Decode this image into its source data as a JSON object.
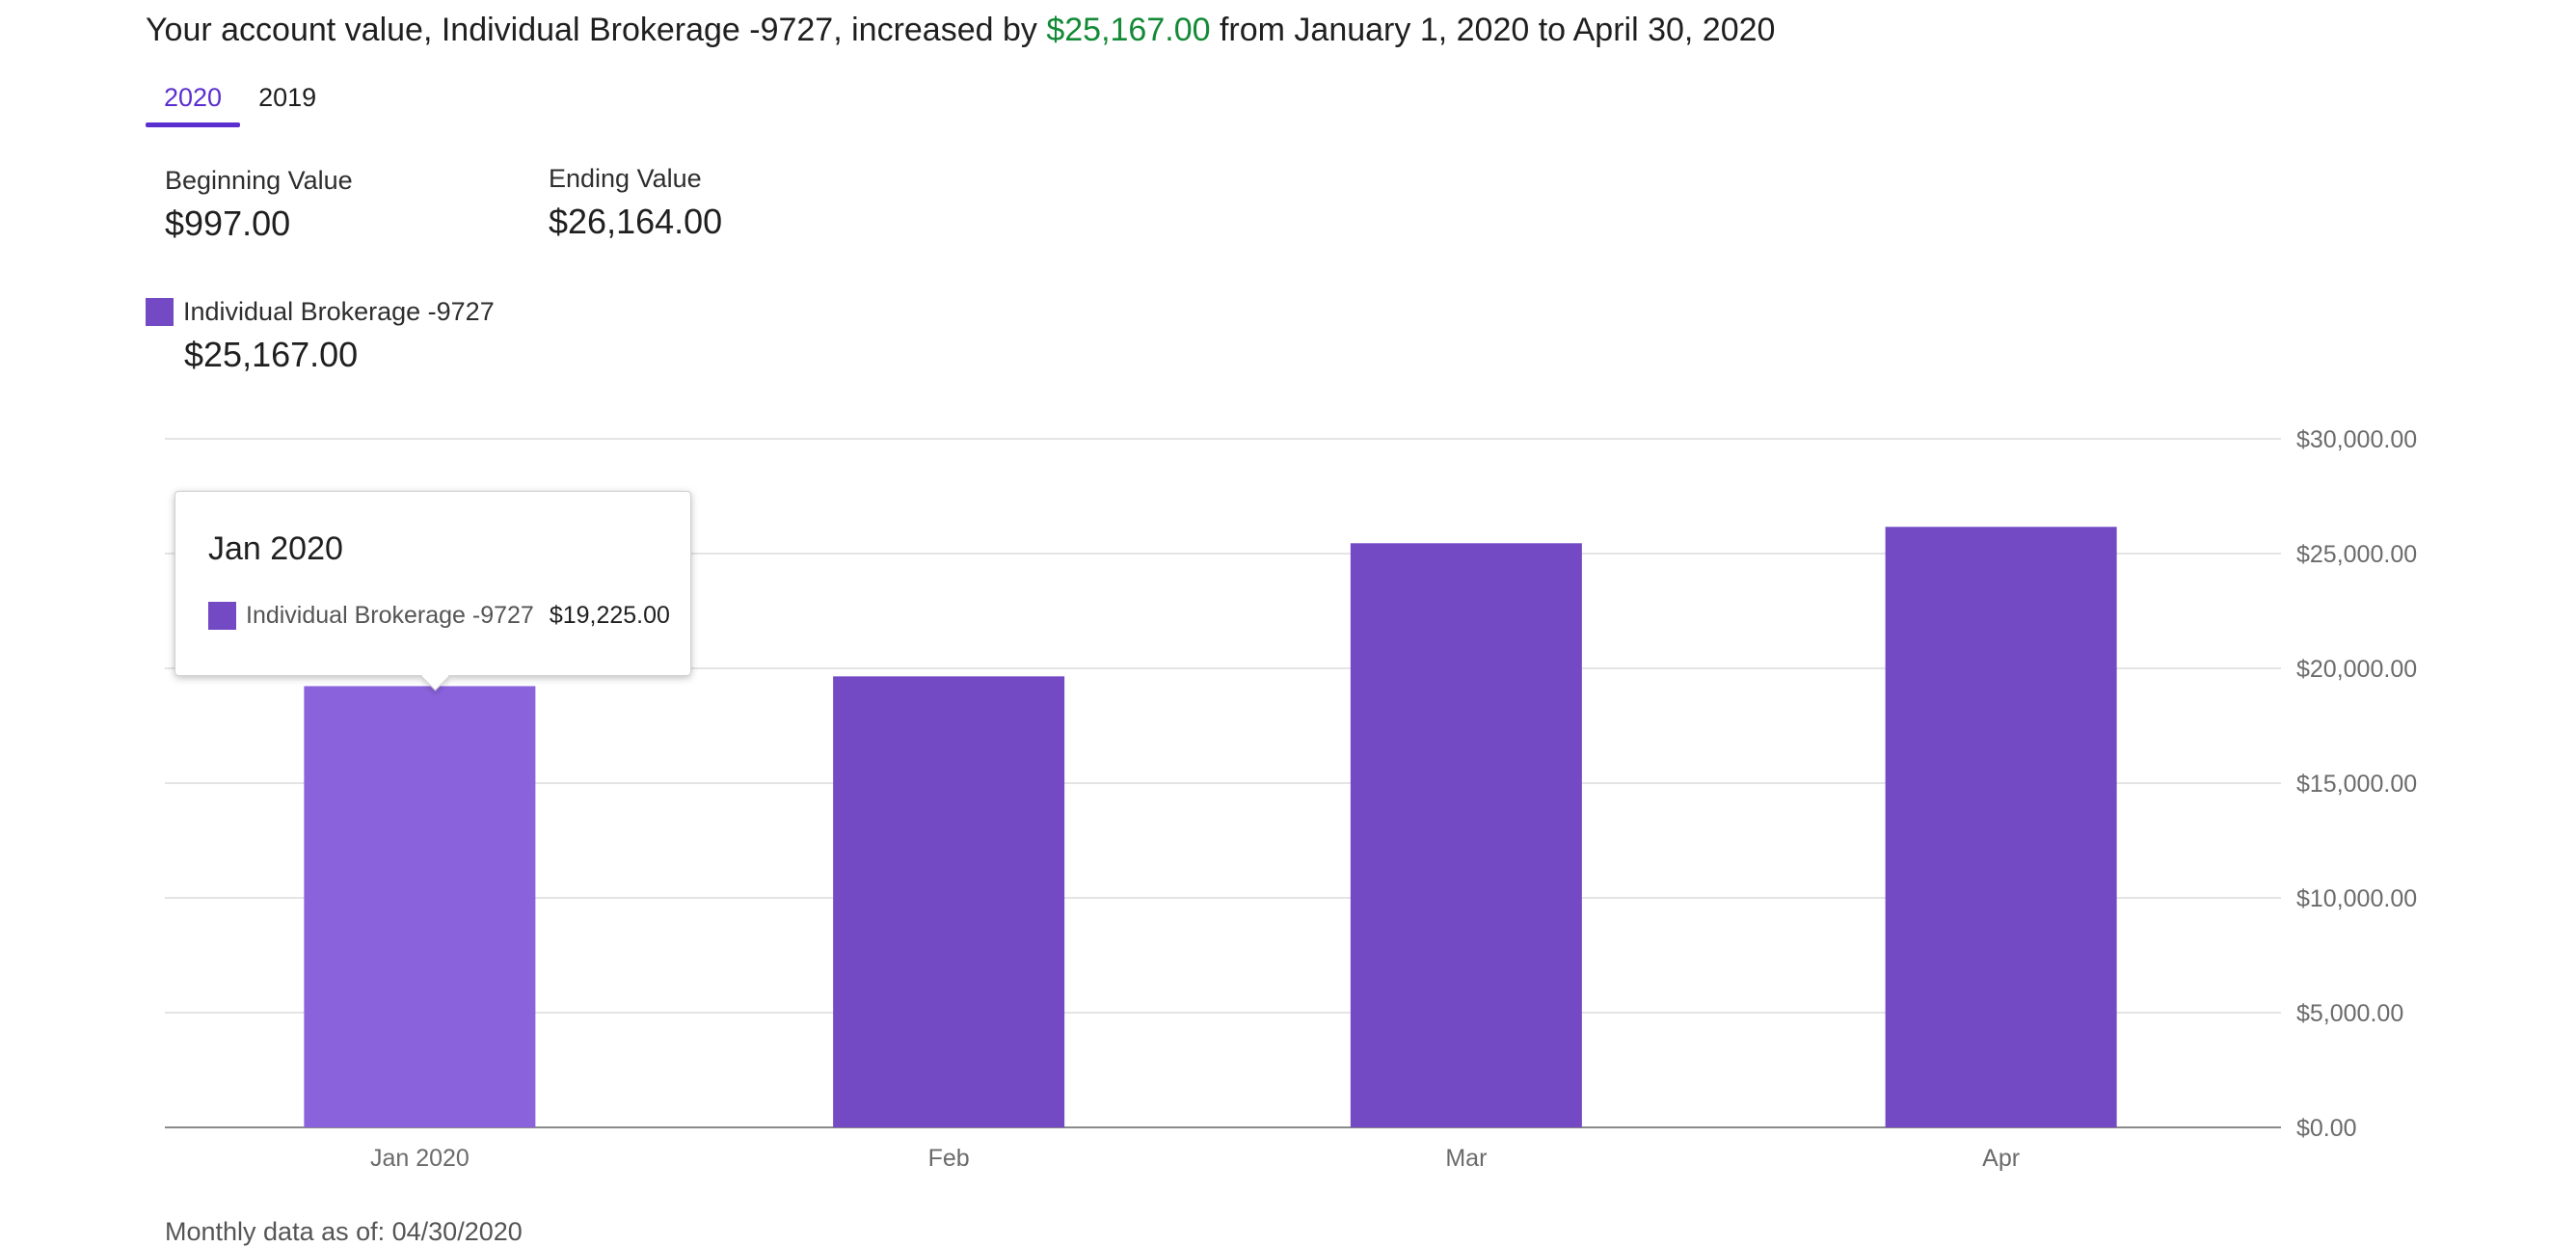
{
  "headline": {
    "prefix": "Your account value, Individual Brokerage -9727, increased by",
    "amount": "$25,167.00",
    "suffix": "from January 1, 2020 to April 30, 2020"
  },
  "tabs": [
    {
      "label": "2020",
      "active": true
    },
    {
      "label": "2019",
      "active": false
    }
  ],
  "summary": {
    "beginning_label": "Beginning Value",
    "beginning_value": "$997.00",
    "ending_label": "Ending Value",
    "ending_value": "$26,164.00"
  },
  "legend": {
    "series_name": "Individual Brokerage -9727",
    "value": "$25,167.00"
  },
  "tooltip": {
    "title": "Jan 2020",
    "series_name": "Individual Brokerage -9727",
    "value": "$19,225.00"
  },
  "footnote": "Monthly data as of: 04/30/2020",
  "colors": {
    "bar": "#7349c4",
    "bar_highlight": "#8a62dc",
    "increase": "#138a36",
    "accent": "#5b2fcf"
  },
  "chart_data": {
    "type": "bar",
    "categories": [
      "Jan 2020",
      "Feb",
      "Mar",
      "Apr"
    ],
    "series": [
      {
        "name": "Individual Brokerage -9727",
        "values": [
          19225,
          19650,
          25450,
          26164
        ]
      }
    ],
    "highlighted_index": 0,
    "ylim": [
      0,
      30000
    ],
    "yticks": [
      {
        "value": 0,
        "label": "$0.00"
      },
      {
        "value": 5000,
        "label": "$5,000.00"
      },
      {
        "value": 10000,
        "label": "$10,000.00"
      },
      {
        "value": 15000,
        "label": "$15,000.00"
      },
      {
        "value": 20000,
        "label": "$20,000.00"
      },
      {
        "value": 25000,
        "label": "$25,000.00"
      },
      {
        "value": 30000,
        "label": "$30,000.00"
      }
    ],
    "grid": true,
    "yaxis_position": "right"
  }
}
